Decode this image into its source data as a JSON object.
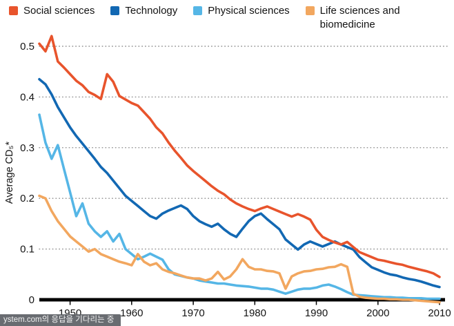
{
  "legend": {
    "items": [
      {
        "label": "Social sciences",
        "color": "#E8542C"
      },
      {
        "label": "Technology",
        "color": "#1268B3"
      },
      {
        "label": "Physical sciences",
        "color": "#55B6E6"
      },
      {
        "label": "Life sciences and biomedicine",
        "color": "#F2A75F"
      }
    ]
  },
  "status_bar": {
    "text": "ystem.com의 응답을 기다리는 중"
  },
  "chart_data": {
    "type": "line",
    "title": "",
    "xlabel": "",
    "ylabel": "Average CD₅*",
    "xlim": [
      1945,
      2010
    ],
    "ylim": [
      -0.01,
      0.53
    ],
    "grid": "horizontal-dotted",
    "legend_position": "top",
    "x_ticks": [
      1950,
      1960,
      1970,
      1980,
      1990,
      2000,
      2010
    ],
    "y_ticks": [
      0,
      0.1,
      0.2,
      0.3,
      0.4,
      0.5
    ],
    "y_tick_labels": [
      "0",
      "0.1",
      "0.2",
      "0.3",
      "0.4",
      "0.5"
    ],
    "x": [
      1945,
      1946,
      1947,
      1948,
      1949,
      1950,
      1951,
      1952,
      1953,
      1954,
      1955,
      1956,
      1957,
      1958,
      1959,
      1960,
      1961,
      1962,
      1963,
      1964,
      1965,
      1966,
      1967,
      1968,
      1969,
      1970,
      1971,
      1972,
      1973,
      1974,
      1975,
      1976,
      1977,
      1978,
      1979,
      1980,
      1981,
      1982,
      1983,
      1984,
      1985,
      1986,
      1987,
      1988,
      1989,
      1990,
      1991,
      1992,
      1993,
      1994,
      1995,
      1996,
      1997,
      1998,
      1999,
      2000,
      2001,
      2002,
      2003,
      2004,
      2005,
      2006,
      2007,
      2008,
      2009,
      2010
    ],
    "series": [
      {
        "name": "Social sciences",
        "slug": "social-sciences",
        "color": "#E8542C",
        "values": [
          0.505,
          0.49,
          0.52,
          0.47,
          0.458,
          0.445,
          0.432,
          0.423,
          0.41,
          0.404,
          0.396,
          0.445,
          0.43,
          0.402,
          0.395,
          0.388,
          0.383,
          0.37,
          0.357,
          0.34,
          0.328,
          0.31,
          0.294,
          0.28,
          0.265,
          0.254,
          0.244,
          0.234,
          0.224,
          0.215,
          0.208,
          0.198,
          0.19,
          0.184,
          0.179,
          0.175,
          0.18,
          0.184,
          0.179,
          0.174,
          0.169,
          0.164,
          0.169,
          0.164,
          0.158,
          0.138,
          0.124,
          0.118,
          0.113,
          0.109,
          0.114,
          0.104,
          0.094,
          0.089,
          0.084,
          0.079,
          0.077,
          0.074,
          0.071,
          0.069,
          0.065,
          0.062,
          0.059,
          0.056,
          0.052,
          0.045
        ]
      },
      {
        "name": "Technology",
        "slug": "technology",
        "color": "#1268B3",
        "values": [
          0.435,
          0.425,
          0.405,
          0.38,
          0.36,
          0.34,
          0.323,
          0.308,
          0.293,
          0.278,
          0.262,
          0.25,
          0.235,
          0.22,
          0.205,
          0.195,
          0.185,
          0.175,
          0.165,
          0.16,
          0.17,
          0.176,
          0.181,
          0.186,
          0.179,
          0.165,
          0.155,
          0.149,
          0.144,
          0.15,
          0.139,
          0.13,
          0.124,
          0.14,
          0.155,
          0.165,
          0.17,
          0.159,
          0.149,
          0.139,
          0.119,
          0.109,
          0.099,
          0.109,
          0.115,
          0.11,
          0.105,
          0.11,
          0.115,
          0.109,
          0.104,
          0.099,
          0.084,
          0.074,
          0.064,
          0.059,
          0.054,
          0.05,
          0.048,
          0.044,
          0.041,
          0.039,
          0.036,
          0.032,
          0.028,
          0.025
        ]
      },
      {
        "name": "Physical sciences",
        "slug": "physical-sciences",
        "color": "#55B6E6",
        "values": [
          0.365,
          0.31,
          0.278,
          0.305,
          0.258,
          0.212,
          0.165,
          0.19,
          0.15,
          0.135,
          0.124,
          0.135,
          0.115,
          0.13,
          0.1,
          0.09,
          0.08,
          0.085,
          0.091,
          0.085,
          0.079,
          0.06,
          0.05,
          0.047,
          0.044,
          0.042,
          0.038,
          0.036,
          0.034,
          0.032,
          0.032,
          0.03,
          0.028,
          0.027,
          0.026,
          0.024,
          0.022,
          0.022,
          0.02,
          0.016,
          0.012,
          0.016,
          0.02,
          0.022,
          0.022,
          0.024,
          0.028,
          0.03,
          0.026,
          0.021,
          0.015,
          0.01,
          0.009,
          0.008,
          0.007,
          0.006,
          0.005,
          0.005,
          0.004,
          0.004,
          0.003,
          0.003,
          0.003,
          0.002,
          0.002,
          0.002
        ]
      },
      {
        "name": "Life sciences and biomedicine",
        "slug": "life-sciences-and-biomedicine",
        "color": "#F2A75F",
        "values": [
          0.205,
          0.2,
          0.175,
          0.155,
          0.14,
          0.125,
          0.115,
          0.105,
          0.095,
          0.1,
          0.09,
          0.085,
          0.08,
          0.075,
          0.072,
          0.068,
          0.09,
          0.075,
          0.068,
          0.072,
          0.06,
          0.055,
          0.052,
          0.048,
          0.044,
          0.042,
          0.042,
          0.038,
          0.042,
          0.055,
          0.04,
          0.046,
          0.06,
          0.08,
          0.065,
          0.06,
          0.06,
          0.057,
          0.056,
          0.052,
          0.022,
          0.046,
          0.052,
          0.056,
          0.057,
          0.06,
          0.061,
          0.064,
          0.065,
          0.07,
          0.065,
          0.012,
          0.006,
          0.004,
          0.003,
          0.002,
          0.002,
          0.001,
          0.001,
          0.0,
          0.0,
          -0.001,
          -0.002,
          -0.003,
          -0.004,
          -0.005
        ]
      }
    ]
  }
}
